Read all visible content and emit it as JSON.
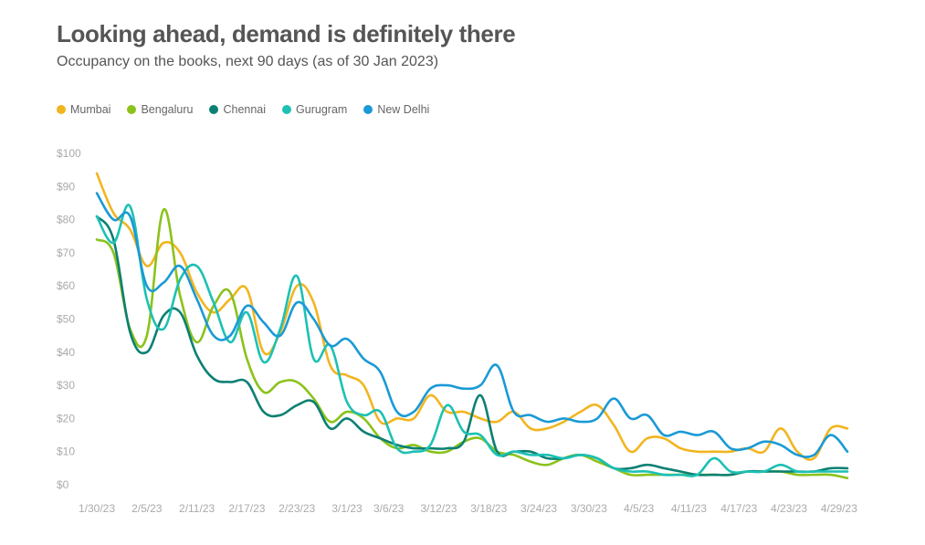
{
  "header": {
    "title": "Looking ahead, demand is definitely there",
    "subtitle": "Occupancy on the books, next 90 days (as of 30 Jan 2023)"
  },
  "chart_data": {
    "type": "line",
    "title": "Looking ahead, demand is definitely there",
    "subtitle": "Occupancy on the books, next 90 days (as of 30 Jan 2023)",
    "legend_position": "top-left",
    "grid": false,
    "ylim": [
      0,
      100
    ],
    "yticks": [
      "$0",
      "$10",
      "$20",
      "$30",
      "$40",
      "$50",
      "$60",
      "$70",
      "$80",
      "$90",
      "$100"
    ],
    "xticks": [
      "1/30/23",
      "2/5/23",
      "2/11/23",
      "2/17/23",
      "2/23/23",
      "3/1/23",
      "3/6/23",
      "3/12/23",
      "3/18/23",
      "3/24/23",
      "3/30/23",
      "4/5/23",
      "4/11/23",
      "4/17/23",
      "4/23/23",
      "4/29/23"
    ],
    "x_start": "2023-01-30",
    "x": [
      "2023-01-30",
      "2023-02-01",
      "2023-02-03",
      "2023-02-05",
      "2023-02-07",
      "2023-02-09",
      "2023-02-11",
      "2023-02-13",
      "2023-02-15",
      "2023-02-17",
      "2023-02-19",
      "2023-02-21",
      "2023-02-23",
      "2023-02-25",
      "2023-02-27",
      "2023-03-01",
      "2023-03-03",
      "2023-03-05",
      "2023-03-07",
      "2023-03-09",
      "2023-03-11",
      "2023-03-13",
      "2023-03-15",
      "2023-03-17",
      "2023-03-19",
      "2023-03-21",
      "2023-03-23",
      "2023-03-25",
      "2023-03-27",
      "2023-03-29",
      "2023-03-31",
      "2023-04-02",
      "2023-04-04",
      "2023-04-06",
      "2023-04-08",
      "2023-04-10",
      "2023-04-12",
      "2023-04-14",
      "2023-04-16",
      "2023-04-18",
      "2023-04-20",
      "2023-04-22",
      "2023-04-24",
      "2023-04-26",
      "2023-04-28",
      "2023-04-30"
    ],
    "series": [
      {
        "name": "Mumbai",
        "color": "#F2B51F",
        "values": [
          94,
          82,
          77,
          66,
          73,
          70,
          58,
          52,
          56,
          59,
          40,
          46,
          60,
          55,
          36,
          33,
          30,
          19,
          20,
          20,
          27,
          22,
          22,
          20,
          19,
          22,
          17,
          17,
          19,
          22,
          24,
          18,
          10,
          14,
          14,
          11,
          10,
          10,
          10,
          11,
          10,
          17,
          10,
          8,
          17,
          17
        ]
      },
      {
        "name": "Bengaluru",
        "color": "#8BC21B",
        "values": [
          74,
          70,
          47,
          45,
          83,
          57,
          43,
          54,
          58,
          38,
          28,
          31,
          31,
          26,
          19,
          22,
          20,
          14,
          11,
          12,
          10,
          10,
          13,
          14,
          10,
          9,
          7,
          6,
          8,
          9,
          7,
          5,
          3,
          3,
          3,
          3,
          3,
          3,
          3,
          4,
          4,
          4,
          3,
          3,
          3,
          2
        ]
      },
      {
        "name": "Chennai",
        "color": "#0B8073",
        "values": [
          81,
          74,
          46,
          40,
          51,
          52,
          39,
          32,
          31,
          31,
          22,
          21,
          24,
          25,
          17,
          20,
          16,
          14,
          12,
          11,
          11,
          11,
          13,
          27,
          10,
          10,
          10,
          8,
          8,
          9,
          8,
          5,
          5,
          6,
          5,
          4,
          3,
          3,
          3,
          4,
          4,
          4,
          4,
          4,
          5,
          5
        ]
      },
      {
        "name": "Gurugram",
        "color": "#1CC1B4",
        "values": [
          81,
          73,
          84,
          56,
          47,
          62,
          66,
          55,
          43,
          52,
          37,
          47,
          63,
          38,
          42,
          25,
          21,
          22,
          11,
          10,
          12,
          24,
          16,
          15,
          9,
          10,
          9,
          9,
          8,
          9,
          8,
          5,
          4,
          4,
          3,
          3,
          3,
          8,
          4,
          4,
          4,
          6,
          4,
          4,
          4,
          4
        ]
      },
      {
        "name": "New Delhi",
        "color": "#1A9AD6",
        "values": [
          88,
          80,
          81,
          60,
          61,
          66,
          56,
          45,
          45,
          54,
          49,
          45,
          55,
          50,
          42,
          44,
          38,
          34,
          22,
          22,
          29,
          30,
          29,
          30,
          36,
          22,
          21,
          19,
          20,
          19,
          20,
          26,
          20,
          21,
          15,
          16,
          15,
          16,
          11,
          11,
          13,
          12,
          9,
          9,
          15,
          10
        ]
      }
    ]
  }
}
